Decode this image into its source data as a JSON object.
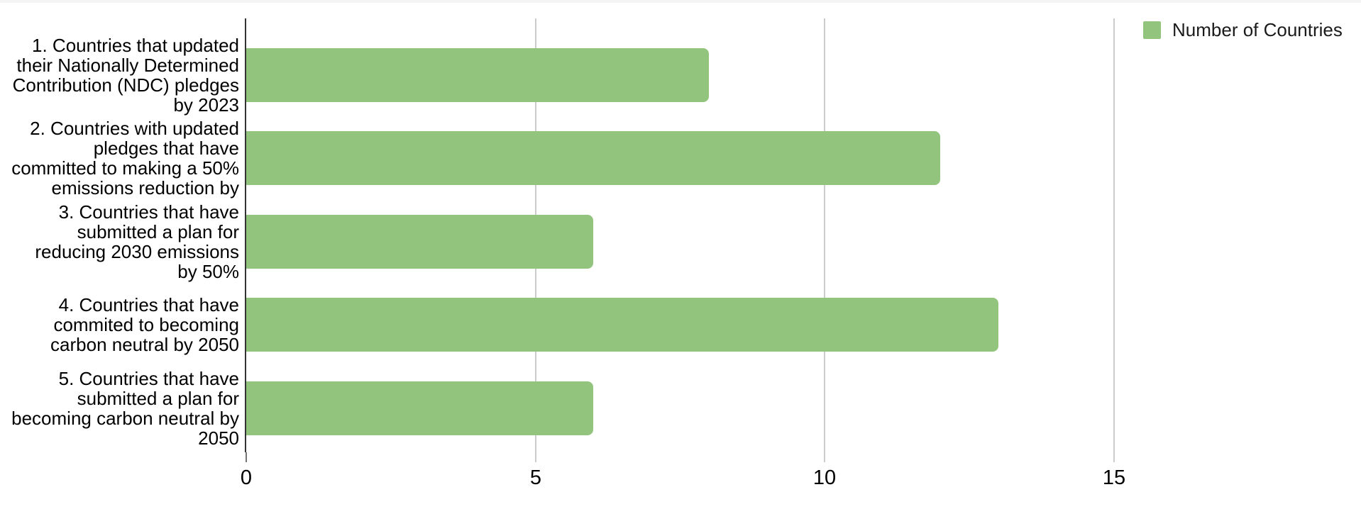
{
  "chart_data": {
    "type": "bar",
    "orientation": "horizontal",
    "title": "",
    "categories": [
      "1. Countries that updated\ntheir Nationally Determined\nContribution (NDC) pledges\nby 2023",
      "2. Countries with updated\npledges that have\ncommitted to making a 50%\nemissions reduction by",
      "3. Countries that have\nsubmitted a plan for\nreducing 2030 emissions\nby 50%",
      "4. Countries that have\ncommited to becoming\ncarbon neutral by 2050",
      "5. Countries that have\nsubmitted a plan for\nbecoming carbon neutral by\n2050"
    ],
    "series": [
      {
        "name": "Number of Countries",
        "values": [
          8,
          12,
          6,
          13,
          6
        ],
        "color": "#93c47d"
      }
    ],
    "xlabel": "",
    "ylabel": "",
    "x_ticks": [
      0,
      5,
      10,
      15
    ],
    "xlim": [
      0,
      19
    ],
    "grid": true,
    "legend_position": "top-right",
    "colors": {
      "bar": "#93c47d",
      "axis_line": "#333333",
      "gridline": "#cccccc",
      "zero_tick": "#757575",
      "text": "#000000"
    }
  }
}
